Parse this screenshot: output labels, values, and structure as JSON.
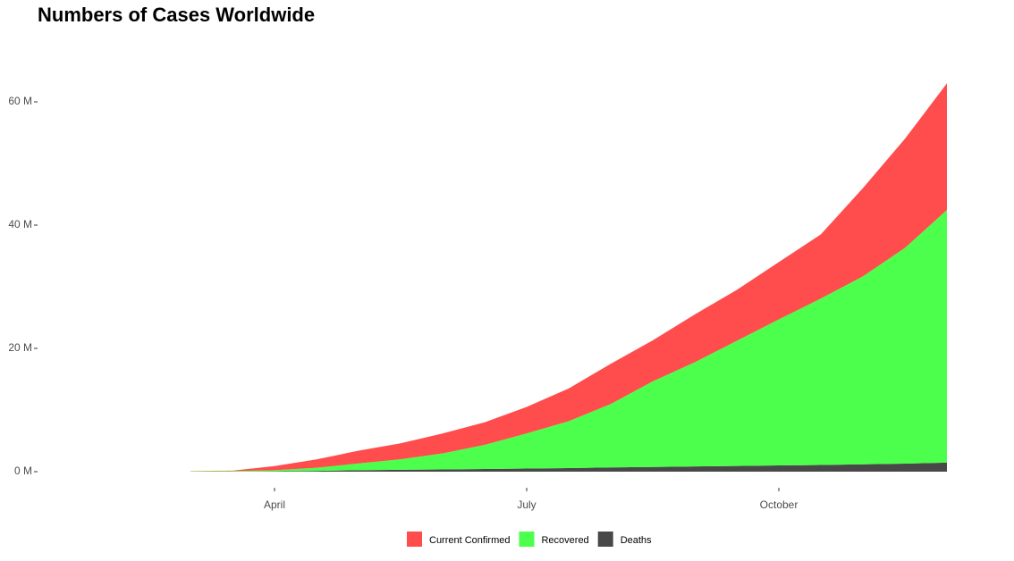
{
  "chart_data": {
    "type": "stacked-area",
    "title": "Numbers of Cases Worldwide",
    "categories": [
      null,
      null,
      "April",
      null,
      null,
      null,
      null,
      null,
      "July",
      null,
      null,
      null,
      null,
      null,
      "October",
      null,
      null,
      null,
      null
    ],
    "series": [
      {
        "name": "Deaths",
        "color": "#484848",
        "values": [
          0.003,
          0.006,
          0.05,
          0.13,
          0.24,
          0.31,
          0.37,
          0.44,
          0.51,
          0.58,
          0.68,
          0.76,
          0.85,
          0.93,
          1.01,
          1.09,
          1.19,
          1.3,
          1.46
        ]
      },
      {
        "name": "Recovered",
        "color": "#4cff4c",
        "values": [
          0.045,
          0.08,
          0.19,
          0.5,
          1.1,
          1.7,
          2.6,
          3.9,
          5.7,
          7.6,
          10.3,
          13.9,
          16.9,
          20.3,
          23.7,
          27.0,
          30.5,
          35.0,
          41.0
        ]
      },
      {
        "name": "Current Confirmed",
        "color": "#ff4c4c",
        "values": [
          0.04,
          0.08,
          0.66,
          1.37,
          2.06,
          2.59,
          3.23,
          3.66,
          4.29,
          5.32,
          6.52,
          6.64,
          7.75,
          8.27,
          9.29,
          10.41,
          14.31,
          17.7,
          20.54
        ]
      }
    ],
    "ylim": [
      0,
      70
    ],
    "yticks": [
      {
        "value": 0,
        "label": "0 M"
      },
      {
        "value": 20,
        "label": "20 M"
      },
      {
        "value": 40,
        "label": "40 M"
      },
      {
        "value": 60,
        "label": "60 M"
      }
    ],
    "legend_order": [
      "Current Confirmed",
      "Recovered",
      "Deaths"
    ]
  }
}
